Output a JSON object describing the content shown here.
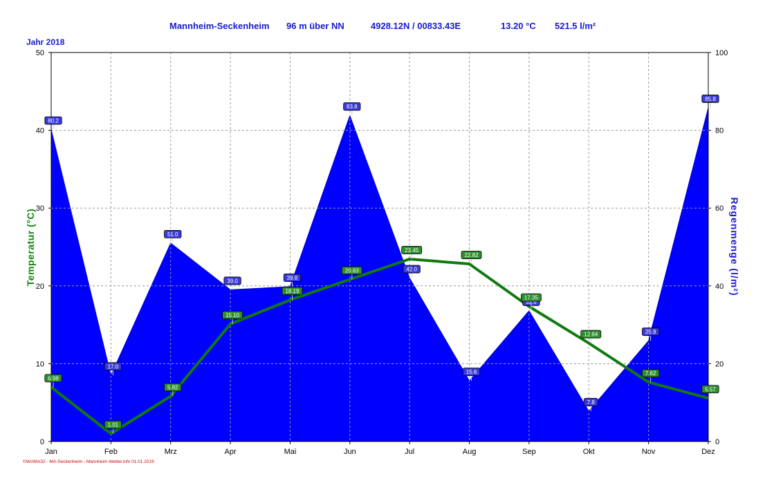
{
  "header": {
    "station": "Mannheim-Seckenheim",
    "altitude": "96 m über NN",
    "coords": "4928.12N / 00833.43E",
    "temp": "13.20 °C",
    "rain": "521.5 l/m²"
  },
  "year_label": "Jahr 2018",
  "footer": "©WsWin32 - MA-Seckenheim - Mannheim-Wetter.info 01.01.2019",
  "colors": {
    "rain": "#0000ff",
    "temp": "#0f7a0f",
    "grid": "#999999"
  },
  "chart_data": {
    "type": "line",
    "categories": [
      "Jan",
      "Feb",
      "Mrz",
      "Apr",
      "Mai",
      "Jun",
      "Jul",
      "Aug",
      "Sep",
      "Okt",
      "Nov",
      "Dez"
    ],
    "ylabel": "Temperatur (°C)",
    "y2label": "Regenmenge (l/m²)",
    "ylim": [
      0,
      50
    ],
    "y2lim": [
      0,
      100
    ],
    "yticks": [
      0,
      10,
      20,
      30,
      40,
      50
    ],
    "y2ticks": [
      0,
      20,
      40,
      60,
      80,
      100
    ],
    "grid": true,
    "series": [
      {
        "name": "Regenmenge",
        "type": "area",
        "axis": "right",
        "values": [
          80.2,
          17.0,
          51.0,
          39.0,
          39.8,
          83.8,
          42.0,
          15.6,
          33.6,
          7.8,
          25.9,
          85.8
        ],
        "labels": [
          "80.2",
          "17.0",
          "51.0",
          "39.0",
          "39.8",
          "83.8",
          "42.0",
          "15.6",
          "33.6",
          "7.8",
          "25.9",
          "85.8"
        ]
      },
      {
        "name": "Temperatur",
        "type": "line",
        "axis": "left",
        "values": [
          6.98,
          1.01,
          5.82,
          15.1,
          18.19,
          20.83,
          23.45,
          22.82,
          17.35,
          12.64,
          7.62,
          5.57
        ],
        "labels": [
          "6.98",
          "1.01",
          "5.82",
          "15.10",
          "18.19",
          "20.83",
          "23.45",
          "22.82",
          "17.35",
          "12.64",
          "7.62",
          "5.57"
        ]
      }
    ]
  }
}
